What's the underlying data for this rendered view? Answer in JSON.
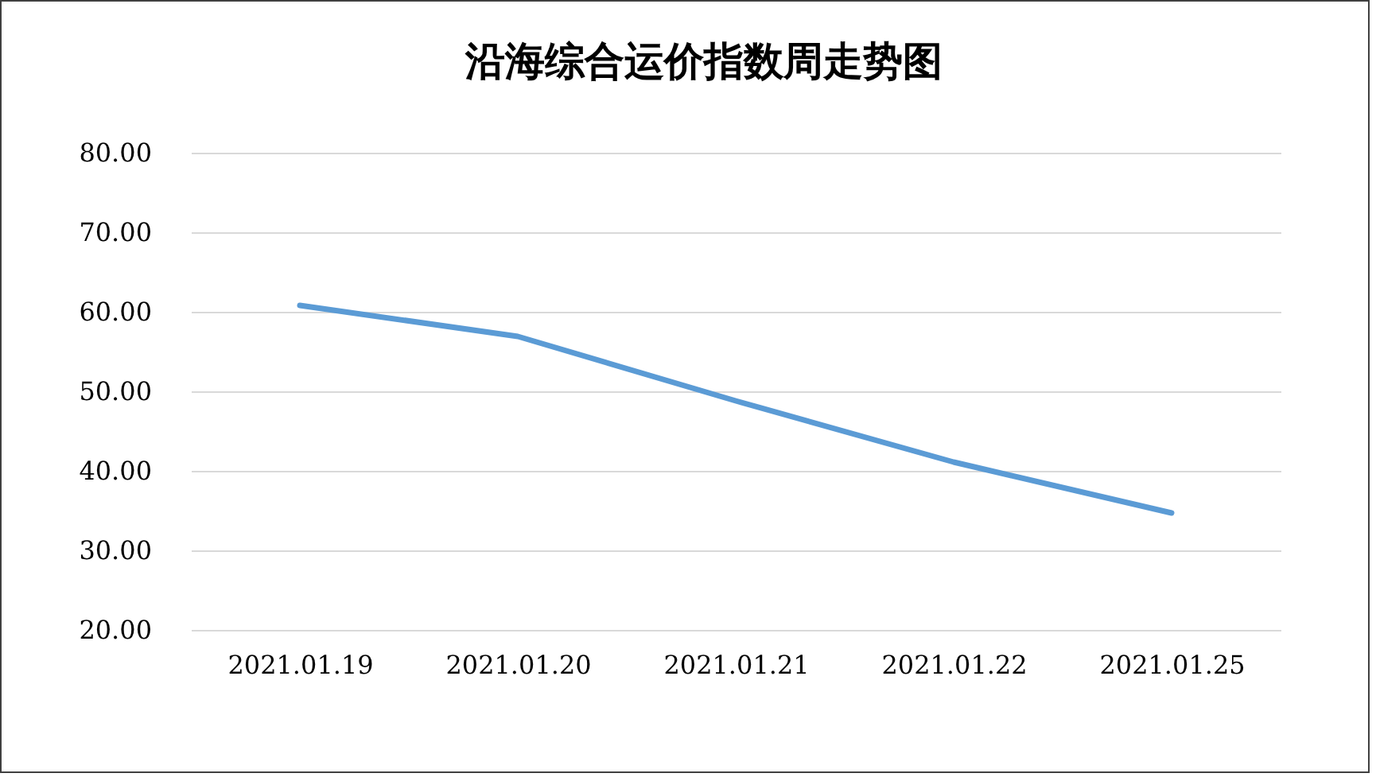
{
  "chart_data": {
    "type": "line",
    "title": "沿海综合运价指数周走势图",
    "categories": [
      "2021.01.19",
      "2021.01.20",
      "2021.01.21",
      "2021.01.22",
      "2021.01.25"
    ],
    "series": [
      {
        "color": "#5b9bd5",
        "values": [
          60.8,
          56.9,
          48.8,
          41.1,
          34.7
        ]
      }
    ],
    "ylim": [
      20,
      80
    ],
    "yticks": [
      {
        "value": 20,
        "label": "20.00"
      },
      {
        "value": 30,
        "label": "30.00"
      },
      {
        "value": 40,
        "label": "40.00"
      },
      {
        "value": 50,
        "label": "50.00"
      },
      {
        "value": 60,
        "label": "60.00"
      },
      {
        "value": 70,
        "label": "70.00"
      },
      {
        "value": 80,
        "label": "80.00"
      }
    ],
    "grid": "y",
    "marker": "none",
    "line_style": "solid"
  }
}
